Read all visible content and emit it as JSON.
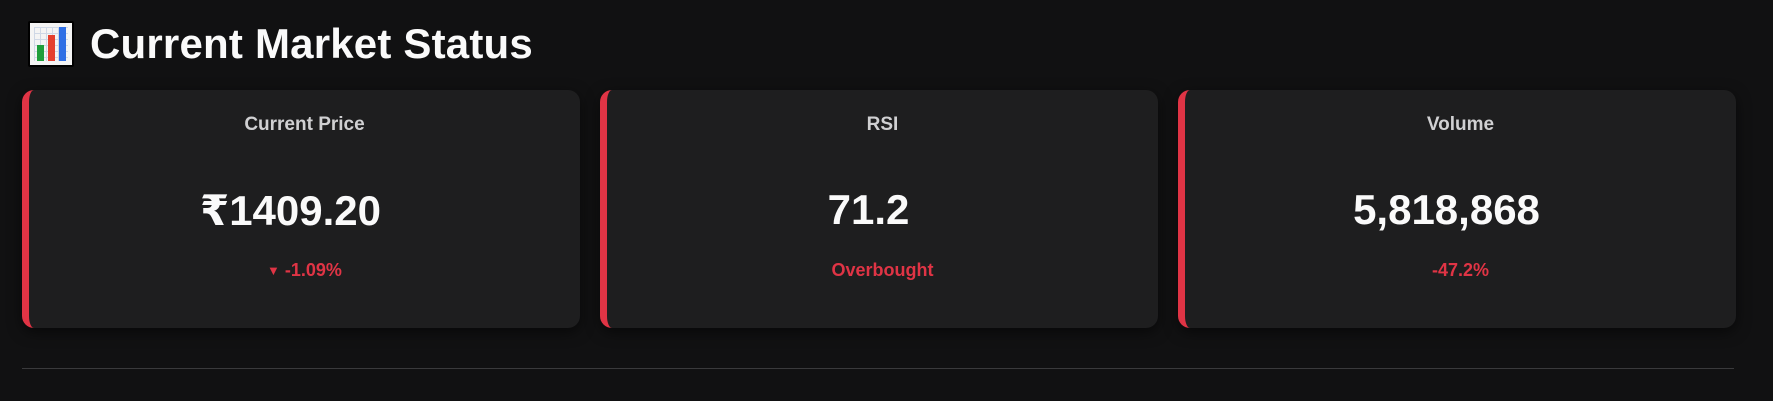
{
  "header": {
    "icon": "bar-chart-icon",
    "title": "Current Market Status"
  },
  "cards": [
    {
      "label": "Current Price",
      "value": "₹1409.20",
      "sub_icon": "down-triangle-icon",
      "sub": "-1.09%"
    },
    {
      "label": "RSI",
      "value": "71.2",
      "sub": "Overbought"
    },
    {
      "label": "Volume",
      "value": "5,818,868",
      "sub": "-47.2%"
    }
  ],
  "colors": {
    "accent": "#e03445",
    "background": "#111112",
    "card": "#1e1e1f"
  }
}
